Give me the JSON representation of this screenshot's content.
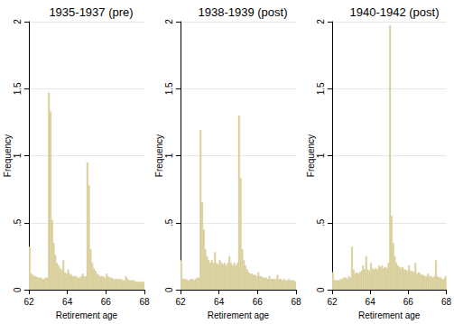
{
  "chart_data": [
    {
      "type": "histogram",
      "title": "1935-1937 (pre)",
      "x_label": "Retirement age",
      "y_label": "Frequency",
      "color": "#d8d09c",
      "grid": true,
      "xlim": [
        62,
        68
      ],
      "xticks": [
        62,
        64,
        66,
        68
      ],
      "ylim": [
        0,
        2
      ],
      "yticks": [
        0,
        {
          "value": 0.5,
          "label": ".5"
        },
        1,
        1.5,
        2
      ],
      "bins": [
        62,
        62.0833,
        62.1667,
        62.25,
        62.3333,
        62.4167,
        62.5,
        62.5833,
        62.6667,
        62.75,
        62.8333,
        62.9167,
        63,
        63.0833,
        63.1667,
        63.25,
        63.3333,
        63.4167,
        63.5,
        63.5833,
        63.6667,
        63.75,
        63.8333,
        63.9167,
        64,
        64.0833,
        64.1667,
        64.25,
        64.3333,
        64.4167,
        64.5,
        64.5833,
        64.6667,
        64.75,
        64.8333,
        64.9167,
        65,
        65.0833,
        65.1667,
        65.25,
        65.3333,
        65.4167,
        65.5,
        65.5833,
        65.6667,
        65.75,
        65.8333,
        65.9167,
        66,
        66.0833,
        66.1667,
        66.25,
        66.3333,
        66.4167,
        66.5,
        66.5833,
        66.6667,
        66.75,
        66.8333,
        66.9167,
        67,
        67.0833,
        67.1667,
        67.25,
        67.3333,
        67.4167,
        67.5,
        67.5833,
        67.6667,
        67.75,
        67.8333,
        67.9167,
        68
      ],
      "values": [
        0.32,
        0.12,
        0.11,
        0.1,
        0.1,
        0.09,
        0.09,
        0.09,
        0.08,
        0.08,
        0.09,
        0.09,
        1.47,
        1.33,
        0.52,
        0.35,
        0.26,
        0.2,
        0.18,
        0.16,
        0.15,
        0.22,
        0.13,
        0.12,
        0.15,
        0.12,
        0.11,
        0.1,
        0.1,
        0.1,
        0.09,
        0.09,
        0.1,
        0.12,
        0.1,
        0.1,
        0.95,
        0.78,
        0.3,
        0.2,
        0.16,
        0.14,
        0.12,
        0.11,
        0.1,
        0.1,
        0.1,
        0.09,
        0.12,
        0.1,
        0.09,
        0.09,
        0.08,
        0.08,
        0.08,
        0.08,
        0.08,
        0.08,
        0.07,
        0.07,
        0.1,
        0.08,
        0.07,
        0.07,
        0.07,
        0.07,
        0.06,
        0.06,
        0.06,
        0.06,
        0.06,
        0.06
      ]
    },
    {
      "type": "histogram",
      "title": "1938-1939 (post)",
      "x_label": "Retirement age",
      "y_label": "Frequency",
      "color": "#d8d09c",
      "grid": true,
      "xlim": [
        62,
        68
      ],
      "xticks": [
        62,
        64,
        66,
        68
      ],
      "ylim": [
        0,
        2
      ],
      "yticks": [
        0,
        {
          "value": 0.5,
          "label": ".5"
        },
        1,
        1.5,
        2
      ],
      "bins": [
        62,
        62.0833,
        62.1667,
        62.25,
        62.3333,
        62.4167,
        62.5,
        62.5833,
        62.6667,
        62.75,
        62.8333,
        62.9167,
        63,
        63.0833,
        63.1667,
        63.25,
        63.3333,
        63.4167,
        63.5,
        63.5833,
        63.6667,
        63.75,
        63.8333,
        63.9167,
        64,
        64.0833,
        64.1667,
        64.25,
        64.3333,
        64.4167,
        64.5,
        64.5833,
        64.6667,
        64.75,
        64.8333,
        64.9167,
        65,
        65.0833,
        65.1667,
        65.25,
        65.3333,
        65.4167,
        65.5,
        65.5833,
        65.6667,
        65.75,
        65.8333,
        65.9167,
        66,
        66.0833,
        66.1667,
        66.25,
        66.3333,
        66.4167,
        66.5,
        66.5833,
        66.6667,
        66.75,
        66.8333,
        66.9167,
        67,
        67.0833,
        67.1667,
        67.25,
        67.3333,
        67.4167,
        67.5,
        67.5833,
        67.6667,
        67.75,
        67.8333,
        67.9167,
        68
      ],
      "values": [
        0.22,
        0.08,
        0.08,
        0.08,
        0.07,
        0.07,
        0.08,
        0.08,
        0.07,
        0.08,
        0.09,
        0.09,
        1.19,
        0.65,
        0.45,
        0.3,
        0.25,
        0.22,
        0.2,
        0.22,
        0.2,
        0.28,
        0.2,
        0.19,
        0.22,
        0.2,
        0.19,
        0.2,
        0.18,
        0.2,
        0.25,
        0.2,
        0.18,
        0.2,
        0.18,
        0.2,
        1.3,
        0.83,
        0.3,
        0.22,
        0.18,
        0.15,
        0.13,
        0.12,
        0.12,
        0.11,
        0.11,
        0.1,
        0.13,
        0.1,
        0.1,
        0.09,
        0.09,
        0.09,
        0.08,
        0.1,
        0.08,
        0.08,
        0.08,
        0.08,
        0.11,
        0.08,
        0.08,
        0.07,
        0.08,
        0.07,
        0.07,
        0.08,
        0.07,
        0.07,
        0.07,
        0.06
      ]
    },
    {
      "type": "histogram",
      "title": "1940-1942 (post)",
      "x_label": "Retirement age",
      "y_label": "Frequency",
      "color": "#d8d09c",
      "grid": true,
      "xlim": [
        62,
        68
      ],
      "xticks": [
        62,
        64,
        66,
        68
      ],
      "ylim": [
        0,
        2
      ],
      "yticks": [
        0,
        {
          "value": 0.5,
          "label": ".5"
        },
        1,
        1.5,
        2
      ],
      "bins": [
        62,
        62.0833,
        62.1667,
        62.25,
        62.3333,
        62.4167,
        62.5,
        62.5833,
        62.6667,
        62.75,
        62.8333,
        62.9167,
        63,
        63.0833,
        63.1667,
        63.25,
        63.3333,
        63.4167,
        63.5,
        63.5833,
        63.6667,
        63.75,
        63.8333,
        63.9167,
        64,
        64.0833,
        64.1667,
        64.25,
        64.3333,
        64.4167,
        64.5,
        64.5833,
        64.6667,
        64.75,
        64.8333,
        64.9167,
        65,
        65.0833,
        65.1667,
        65.25,
        65.3333,
        65.4167,
        65.5,
        65.5833,
        65.6667,
        65.75,
        65.8333,
        65.9167,
        66,
        66.0833,
        66.1667,
        66.25,
        66.3333,
        66.4167,
        66.5,
        66.5833,
        66.6667,
        66.75,
        66.8333,
        66.9167,
        67,
        67.0833,
        67.1667,
        67.25,
        67.3333,
        67.4167,
        67.5,
        67.5833,
        67.6667,
        67.75,
        67.8333,
        67.9167,
        68
      ],
      "values": [
        0.13,
        0.07,
        0.07,
        0.07,
        0.07,
        0.08,
        0.08,
        0.09,
        0.09,
        0.08,
        0.1,
        0.09,
        0.32,
        0.15,
        0.12,
        0.13,
        0.12,
        0.13,
        0.14,
        0.18,
        0.15,
        0.25,
        0.15,
        0.14,
        0.2,
        0.16,
        0.15,
        0.16,
        0.15,
        0.18,
        0.17,
        0.18,
        0.16,
        0.17,
        0.16,
        0.2,
        1.97,
        0.55,
        0.35,
        0.25,
        0.2,
        0.18,
        0.17,
        0.16,
        0.17,
        0.15,
        0.15,
        0.14,
        0.18,
        0.14,
        0.14,
        0.13,
        0.2,
        0.12,
        0.13,
        0.12,
        0.11,
        0.11,
        0.1,
        0.1,
        0.12,
        0.1,
        0.1,
        0.09,
        0.1,
        0.22,
        0.1,
        0.09,
        0.09,
        0.08,
        0.08,
        0.1
      ]
    }
  ]
}
